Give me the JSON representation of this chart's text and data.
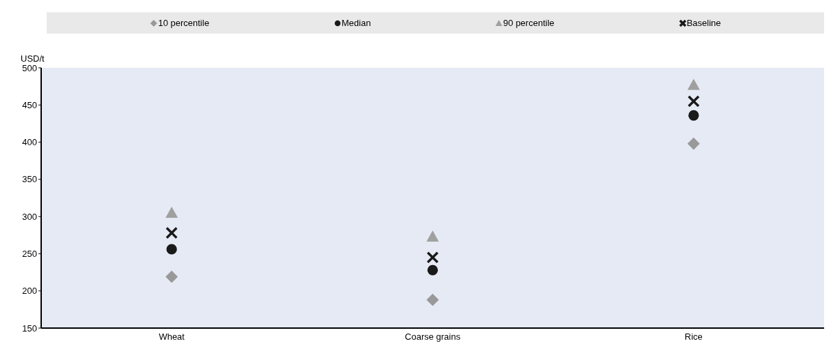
{
  "chart_data": {
    "type": "scatter",
    "ylabel": "USD/t",
    "categories": [
      "Wheat",
      "Coarse grains",
      "Rice"
    ],
    "series": [
      {
        "name": "10 percentile",
        "color": "#999999",
        "marker": "diamond",
        "values": [
          219,
          188,
          398
        ]
      },
      {
        "name": "Median",
        "color": "#1a1a1a",
        "marker": "circle",
        "values": [
          256,
          228,
          436
        ]
      },
      {
        "name": "90 percentile",
        "color": "#a0a0a0",
        "marker": "triangle",
        "values": [
          305,
          273,
          477
        ]
      },
      {
        "name": "Baseline",
        "color": "#1a1a1a",
        "marker": "cross",
        "values": [
          278,
          245,
          455
        ]
      }
    ],
    "ylim": [
      150,
      500
    ],
    "yticks": [
      150,
      200,
      250,
      300,
      350,
      400,
      450,
      500
    ],
    "grid": false,
    "legend": "top"
  }
}
